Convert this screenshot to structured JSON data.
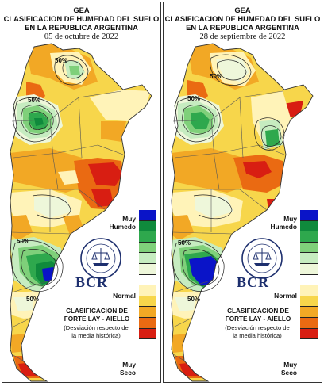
{
  "panels": [
    {
      "header_line1": "GEA",
      "header_line2": "CLASIFICACION DE HUMEDAD DEL SUELO",
      "header_line3": "EN LA REPUBLICA ARGENTINA",
      "date": "05 de octubre de 2022",
      "contour_labels": [
        "50%",
        "50%",
        "50%",
        "50%"
      ]
    },
    {
      "header_line1": "GEA",
      "header_line2": "CLASIFICACION DE HUMEDAD DEL SUELO",
      "header_line3": "EN LA REPUBLICA ARGENTINA",
      "date": "28 de septiembre de 2022",
      "contour_labels": [
        "50%",
        "50%",
        "50%",
        "50%"
      ]
    }
  ],
  "legend": {
    "top_label_1": "Muy",
    "top_label_2": "Humedo",
    "mid_label": "Normal",
    "bottom_label_1": "Muy",
    "bottom_label_2": "Seco",
    "colors": [
      "#0a14c8",
      "#0f8a3c",
      "#2ea84d",
      "#7fd07a",
      "#c6ecc0",
      "#eef7da",
      "#ffffff",
      "#fff3b8",
      "#f7d64b",
      "#f2a825",
      "#ea6a12",
      "#d81e12"
    ]
  },
  "logo": {
    "seal_text": "BOLSA DE COMERCIO DE ROSARIO",
    "name": "BCR"
  },
  "classification": {
    "title_line1": "CLASIFICACION DE",
    "title_line2": "FORTE LAY - AIELLO",
    "note_line1": "(Desviación respecto de",
    "note_line2": "la media histórica)"
  }
}
